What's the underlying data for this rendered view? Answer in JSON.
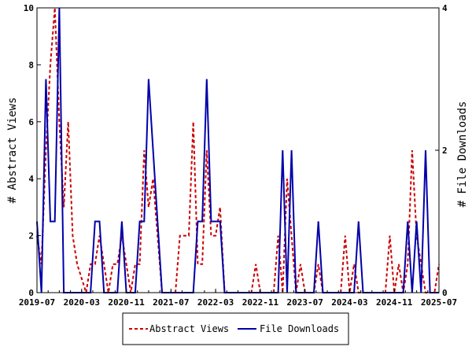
{
  "chart_data": {
    "type": "line",
    "title": "",
    "xlabel": "",
    "ylabel_left": "# Abstract Views",
    "ylabel_right": "# File Downloads",
    "x_ticks": [
      "2019-07",
      "2020-03",
      "2020-11",
      "2021-07",
      "2022-03",
      "2022-11",
      "2023-07",
      "2024-03",
      "2024-11",
      "2025-07"
    ],
    "x_start": "2019-07",
    "x_end": "2025-07",
    "ylim_left": [
      0,
      10
    ],
    "ylim_right": [
      0,
      4
    ],
    "y_ticks_left": [
      "0",
      "2",
      "4",
      "6",
      "8",
      "10"
    ],
    "y_ticks_right": [
      "0",
      "2",
      "4"
    ],
    "grid": false,
    "legend_position": "bottom",
    "series": [
      {
        "name": "Abstract Views",
        "axis": "left",
        "color": "#cc0000",
        "style": "dashed",
        "values": [
          2,
          1,
          5,
          8,
          10,
          6,
          3,
          6,
          2,
          1,
          0.5,
          0,
          1,
          1,
          2,
          1,
          0,
          1,
          1,
          2,
          1,
          0,
          1,
          1,
          5,
          3,
          4,
          2,
          0,
          0,
          0,
          0,
          2,
          2,
          2,
          6,
          1,
          1,
          5,
          2,
          2,
          3,
          0,
          0,
          0,
          0,
          0,
          0,
          0,
          1,
          0,
          0,
          0,
          0,
          2,
          0,
          4,
          2,
          0,
          1,
          0,
          0,
          0,
          1,
          0,
          0,
          0,
          0,
          0,
          2,
          0,
          1,
          0,
          0,
          0,
          0,
          0,
          0,
          0,
          2,
          0,
          1,
          0,
          1,
          5,
          2,
          1,
          0,
          0,
          0,
          1
        ]
      },
      {
        "name": "File Downloads",
        "axis": "right",
        "color": "#0000aa",
        "style": "solid",
        "values": [
          1,
          0,
          3,
          1,
          1,
          4,
          0,
          0,
          0,
          0,
          0,
          0,
          0,
          1,
          1,
          0,
          0,
          0,
          0,
          1,
          0,
          0,
          0,
          1,
          1,
          3,
          2,
          1,
          0,
          0,
          0,
          0,
          0,
          0,
          0,
          0,
          1,
          1,
          3,
          1,
          1,
          1,
          0,
          0,
          0,
          0,
          0,
          0,
          0,
          0,
          0,
          0,
          0,
          0,
          0,
          2,
          0,
          2,
          0,
          0,
          0,
          0,
          0,
          1,
          0,
          0,
          0,
          0,
          0,
          0,
          0,
          0,
          1,
          0,
          0,
          0,
          0,
          0,
          0,
          0,
          0,
          0,
          0,
          1,
          0,
          1,
          0,
          2,
          0,
          0,
          0
        ]
      }
    ]
  }
}
